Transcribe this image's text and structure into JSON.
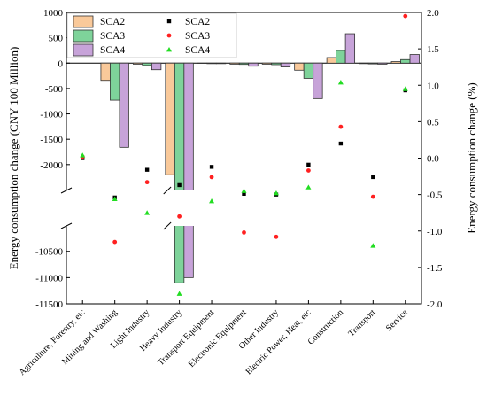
{
  "chart_data": {
    "type": "bar",
    "categories": [
      "Agriculture, Forestry, etc",
      "Mining and Washing",
      "Light Industry",
      "Heavy Industry",
      "Transport Equipment",
      "Electronic Equipment",
      "Other Industry",
      "Electric Power, Heat, etc",
      "Construction",
      "Transport",
      "Service"
    ],
    "series": [
      {
        "name": "SCA2",
        "kind": "bar",
        "axis": "left",
        "color": "#F9C99A",
        "values": [
          0,
          -340,
          -20,
          -2200,
          -5,
          -20,
          -20,
          -140,
          110,
          -10,
          30
        ]
      },
      {
        "name": "SCA3",
        "kind": "bar",
        "axis": "left",
        "color": "#7ED39A",
        "values": [
          0,
          -730,
          -45,
          -11100,
          -10,
          -25,
          -30,
          -300,
          250,
          -15,
          70
        ]
      },
      {
        "name": "SCA4",
        "kind": "bar",
        "axis": "left",
        "color": "#C7A3D9",
        "values": [
          0,
          -1660,
          -130,
          -11000,
          -10,
          -60,
          -75,
          -700,
          580,
          -20,
          170
        ]
      },
      {
        "name": "SCA2",
        "kind": "scatter",
        "axis": "right",
        "marker": "square",
        "color": "#000000",
        "values": [
          0.0,
          -0.54,
          -0.16,
          -0.37,
          -0.12,
          -0.49,
          -0.5,
          -0.09,
          0.2,
          -0.26,
          0.93
        ]
      },
      {
        "name": "SCA3",
        "kind": "scatter",
        "axis": "right",
        "marker": "circle",
        "color": "#FF2020",
        "values": [
          0.02,
          -1.15,
          -0.33,
          -0.8,
          -0.26,
          -1.02,
          -1.08,
          -0.17,
          0.43,
          -0.53,
          1.95
        ]
      },
      {
        "name": "SCA4",
        "kind": "scatter",
        "axis": "right",
        "marker": "triangle",
        "color": "#22DD22",
        "values": [
          0.04,
          -0.56,
          -0.75,
          -1.86,
          -0.59,
          -0.45,
          -0.48,
          -0.4,
          1.04,
          -1.2,
          0.95
        ]
      }
    ],
    "left_axis": {
      "label": "Energy consumption change (CNY 100 Million)",
      "broken": true,
      "upper_segment": {
        "min": -2300,
        "max": 1000,
        "ticks": [
          1000,
          500,
          0,
          -500,
          -1000,
          -1500,
          -2000
        ],
        "tick_labels": [
          "1000",
          "500",
          "0",
          "-500",
          "-1000",
          "-1500",
          "-2000"
        ]
      },
      "lower_segment": {
        "min": -11500,
        "max": -10150,
        "ticks": [
          -10500,
          -11000,
          -11500
        ],
        "tick_labels": [
          "-10500",
          "-11000",
          "-11500"
        ]
      }
    },
    "right_axis": {
      "label": "Energy consumption change (%)",
      "ylim": [
        -2.0,
        2.0
      ],
      "ticks": [
        2.0,
        1.5,
        1.0,
        0.5,
        0.0,
        -0.5,
        -1.0,
        -1.5,
        -2.0
      ],
      "tick_labels": [
        "2.0",
        "1.5",
        "1.0",
        "0.5",
        "0.0",
        "-0.5",
        "-1.0",
        "-1.5",
        "-2.0"
      ]
    },
    "legend": {
      "placement": "top-left",
      "columns": 2
    }
  }
}
